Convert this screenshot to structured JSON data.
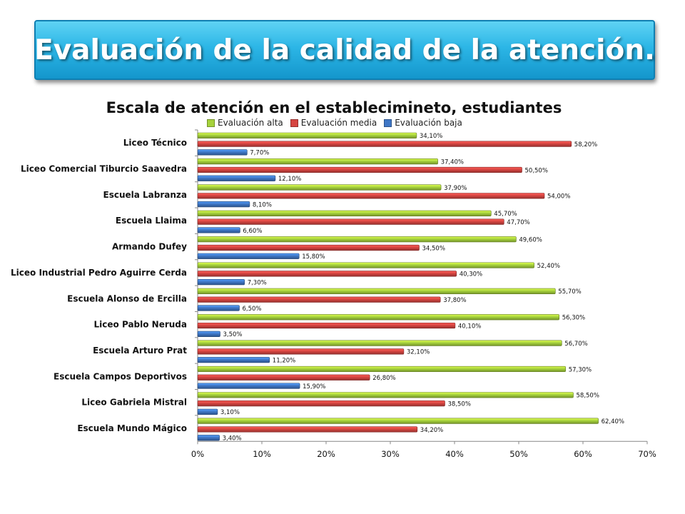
{
  "slide": {
    "title": "Evaluación de la calidad de la atención."
  },
  "colors": {
    "alta": "#a6d23c",
    "media": "#d64541",
    "baja": "#3f77c6",
    "banner": "#2cb6e6"
  },
  "chart_data": {
    "type": "bar",
    "orientation": "horizontal",
    "title": "Escala de atención en el establecimineto, estudiantes",
    "xlabel": "",
    "ylabel": "",
    "xlim": [
      0,
      70
    ],
    "ticks": [
      "0%",
      "10%",
      "20%",
      "30%",
      "40%",
      "50%",
      "60%",
      "70%"
    ],
    "tick_values": [
      0,
      10,
      20,
      30,
      40,
      50,
      60,
      70
    ],
    "legend_position": "top",
    "grid": false,
    "categories": [
      "Liceo Técnico",
      "Liceo Comercial Tiburcio Saavedra",
      "Escuela Labranza",
      "Escuela Llaima",
      "Armando Dufey",
      "Liceo Industrial Pedro Aguirre Cerda",
      "Escuela Alonso de Ercilla",
      "Liceo Pablo Neruda",
      "Escuela Arturo Prat",
      "Escuela Campos Deportivos",
      "Liceo Gabriela Mistral",
      "Escuela Mundo Mágico"
    ],
    "series": [
      {
        "name": "Evaluación alta",
        "key": "alta",
        "values": [
          34.1,
          37.4,
          37.9,
          45.7,
          49.6,
          52.4,
          55.7,
          56.3,
          56.7,
          57.3,
          58.5,
          62.4
        ],
        "labels": [
          "34,10%",
          "37,40%",
          "37,90%",
          "45,70%",
          "49,60%",
          "52,40%",
          "55,70%",
          "56,30%",
          "56,70%",
          "57,30%",
          "58,50%",
          "62,40%"
        ]
      },
      {
        "name": "Evaluación media",
        "key": "media",
        "values": [
          58.2,
          50.5,
          54.0,
          47.7,
          34.5,
          40.3,
          37.8,
          40.1,
          32.1,
          26.8,
          38.5,
          34.2
        ],
        "labels": [
          "58,20%",
          "50,50%",
          "54,00%",
          "47,70%",
          "34,50%",
          "40,30%",
          "37,80%",
          "40,10%",
          "32,10%",
          "26,80%",
          "38,50%",
          "34,20%"
        ]
      },
      {
        "name": "Evaluación baja",
        "key": "baja",
        "values": [
          7.7,
          12.1,
          8.1,
          6.6,
          15.8,
          7.3,
          6.5,
          3.5,
          11.2,
          15.9,
          3.1,
          3.4
        ],
        "labels": [
          "7,70%",
          "12,10%",
          "8,10%",
          "6,60%",
          "15,80%",
          "7,30%",
          "6,50%",
          "3,50%",
          "11,20%",
          "15,90%",
          "3,10%",
          "3,40%"
        ]
      }
    ]
  }
}
